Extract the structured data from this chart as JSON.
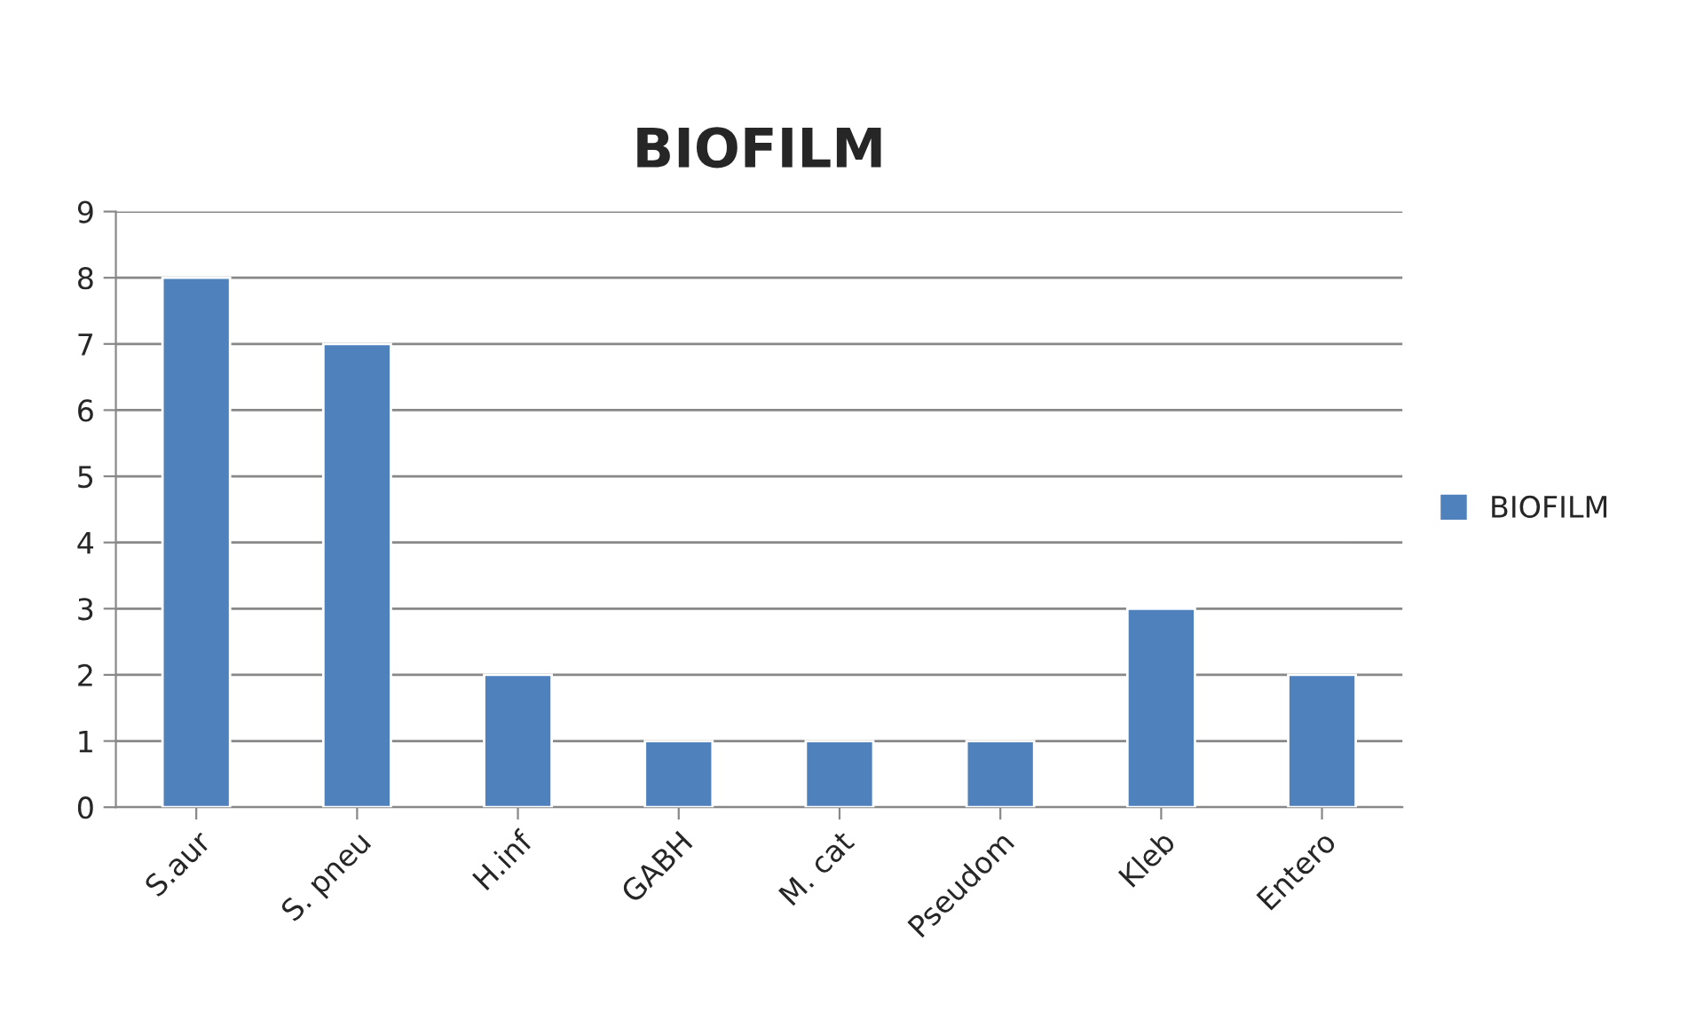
{
  "chart_data": {
    "type": "bar",
    "title": "BIOFILM",
    "categories": [
      "S.aur",
      "S. pneu",
      "H.inf",
      "GABH",
      "M. cat",
      "Pseudom",
      "Kleb",
      "Entero"
    ],
    "series": [
      {
        "name": "BIOFILM",
        "color": "#4f81bd",
        "values": [
          8,
          7,
          2,
          1,
          1,
          1,
          3,
          2
        ]
      }
    ],
    "ylim": [
      0,
      9
    ],
    "yticks": [
      0,
      1,
      2,
      3,
      4,
      5,
      6,
      7,
      8,
      9
    ],
    "grid": "y",
    "legend": "right"
  }
}
